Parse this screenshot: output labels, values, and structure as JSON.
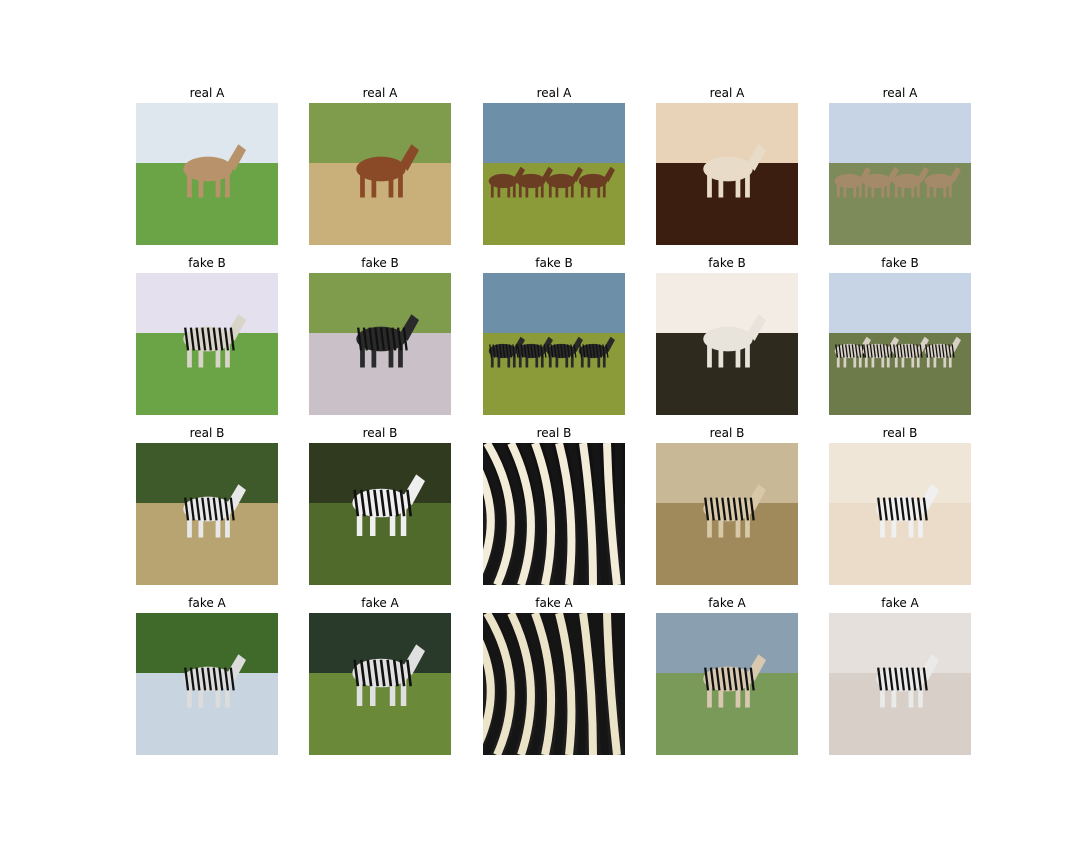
{
  "figure": {
    "rows": [
      {
        "label": "real A",
        "panels": [
          {
            "label": "real A",
            "scene": "horse-grassy-hills",
            "sky": "#dfe7ee",
            "ground": "#6aa446",
            "animal": "horse",
            "animal_color": "#b7926a"
          },
          {
            "label": "real A",
            "scene": "horse-tall-grass",
            "sky": "#7f9b4c",
            "ground": "#c9b07a",
            "animal": "horse",
            "animal_color": "#8a4a28"
          },
          {
            "label": "real A",
            "scene": "horse-herd-mountains",
            "sky": "#6e8fa8",
            "ground": "#8c9b3a",
            "animal": "horse-herd",
            "animal_color": "#6b3d22"
          },
          {
            "label": "real A",
            "scene": "horse-red-butte",
            "sky": "#e8d3b8",
            "ground": "#3b1e10",
            "animal": "horse",
            "animal_color": "#e8dcc8"
          },
          {
            "label": "real A",
            "scene": "horses-pasture-forest",
            "sky": "#c6d4e6",
            "ground": "#7d8a5a",
            "animal": "horse-herd",
            "animal_color": "#a58a6a"
          }
        ]
      },
      {
        "label": "fake B",
        "panels": [
          {
            "label": "fake B",
            "scene": "zebra-grassy-hills",
            "sky": "#e4e0ee",
            "ground": "#6aa446",
            "animal": "zebra",
            "animal_color": "#d8d4c8"
          },
          {
            "label": "fake B",
            "scene": "zebra-tall-grass",
            "sky": "#7f9b4c",
            "ground": "#c9c0c8",
            "animal": "zebra",
            "animal_color": "#2a2a2a"
          },
          {
            "label": "fake B",
            "scene": "zebra-herd-mountains",
            "sky": "#6e8fa8",
            "ground": "#8c9b3a",
            "animal": "zebra-herd",
            "animal_color": "#2a2a2a"
          },
          {
            "label": "fake B",
            "scene": "zebra-butte",
            "sky": "#f2ece4",
            "ground": "#2e2a1e",
            "animal": "horse",
            "animal_color": "#e8e4dc"
          },
          {
            "label": "fake B",
            "scene": "zebras-pasture-forest",
            "sky": "#c6d4e6",
            "ground": "#6d7a4a",
            "animal": "zebra-herd",
            "animal_color": "#d8d0c4"
          }
        ]
      },
      {
        "label": "real B",
        "panels": [
          {
            "label": "real B",
            "scene": "zebra-bush",
            "sky": "#3f5a2a",
            "ground": "#b8a470",
            "animal": "zebra",
            "animal_color": "#e8e8e8"
          },
          {
            "label": "real B",
            "scene": "zebra-grazing-grass",
            "sky": "#2f3a1e",
            "ground": "#4f6a2a",
            "animal": "zebra-grazing",
            "animal_color": "#efefef"
          },
          {
            "label": "real B",
            "scene": "zebra-closeup",
            "sky": "#101010",
            "ground": "#1a1a1a",
            "animal": "zebra-closeup",
            "animal_color": "#f2ecd8"
          },
          {
            "label": "real B",
            "scene": "zebra-dirt-yard",
            "sky": "#c8b896",
            "ground": "#a08a5c",
            "animal": "zebra",
            "animal_color": "#d8c8a8"
          },
          {
            "label": "real B",
            "scene": "zebra-dust",
            "sky": "#f0e6d8",
            "ground": "#eadcc8",
            "animal": "zebra",
            "animal_color": "#f0f0f0"
          }
        ]
      },
      {
        "label": "fake A",
        "panels": [
          {
            "label": "fake A",
            "scene": "horse-bush",
            "sky": "#3f6a2a",
            "ground": "#c8d4e0",
            "animal": "zebra",
            "animal_color": "#dcdcdc"
          },
          {
            "label": "fake A",
            "scene": "horse-grazing-grass",
            "sky": "#2a3a2a",
            "ground": "#6a8a3a",
            "animal": "zebra-grazing",
            "animal_color": "#e0e0e0"
          },
          {
            "label": "fake A",
            "scene": "horse-closeup",
            "sky": "#141414",
            "ground": "#1c1c1c",
            "animal": "zebra-closeup",
            "animal_color": "#ece4c8"
          },
          {
            "label": "fake A",
            "scene": "horse-green-yard",
            "sky": "#8aa0b0",
            "ground": "#7a9a5a",
            "animal": "zebra",
            "animal_color": "#d8c8b0"
          },
          {
            "label": "fake A",
            "scene": "horse-dust",
            "sky": "#e6e0dc",
            "ground": "#d8d0c8",
            "animal": "zebra",
            "animal_color": "#eaeaea"
          }
        ]
      }
    ]
  }
}
